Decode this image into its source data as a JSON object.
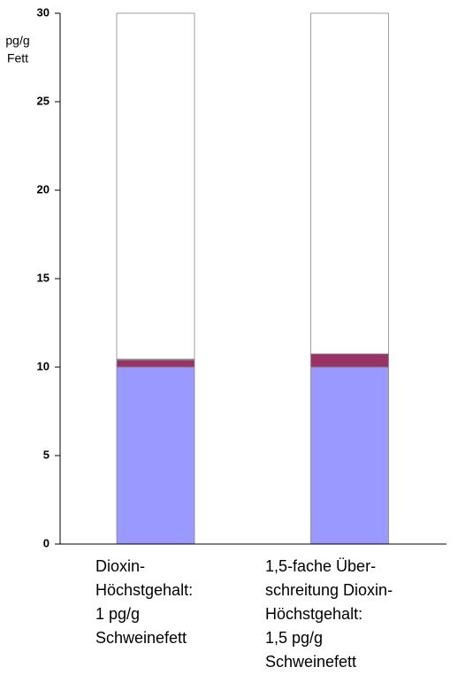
{
  "chart_data": {
    "type": "stacked_bar",
    "y_label": [
      "pg/g",
      "Fett"
    ],
    "categories": [
      [
        "Dioxin-",
        "Höchstgehalt:",
        "1 pg/g",
        "Schweinefett"
      ],
      [
        "1,5-fache Über-",
        "schreitung Dioxin-",
        "Höchstgehalt:",
        "1,5 pg/g",
        "Schweinefett"
      ]
    ],
    "series": [
      {
        "color": "#9999ff",
        "values": [
          10,
          10
        ]
      },
      {
        "color": "#993366",
        "values": [
          0.4,
          0.75
        ]
      },
      {
        "color": "#339966",
        "values": [
          0.05,
          0
        ]
      },
      {
        "color": "#ffffff",
        "values": [
          19.55,
          19.25
        ]
      }
    ],
    "ylim": [
      0,
      30
    ],
    "yticks": [
      0,
      5,
      10,
      15,
      20,
      25,
      30
    ]
  }
}
